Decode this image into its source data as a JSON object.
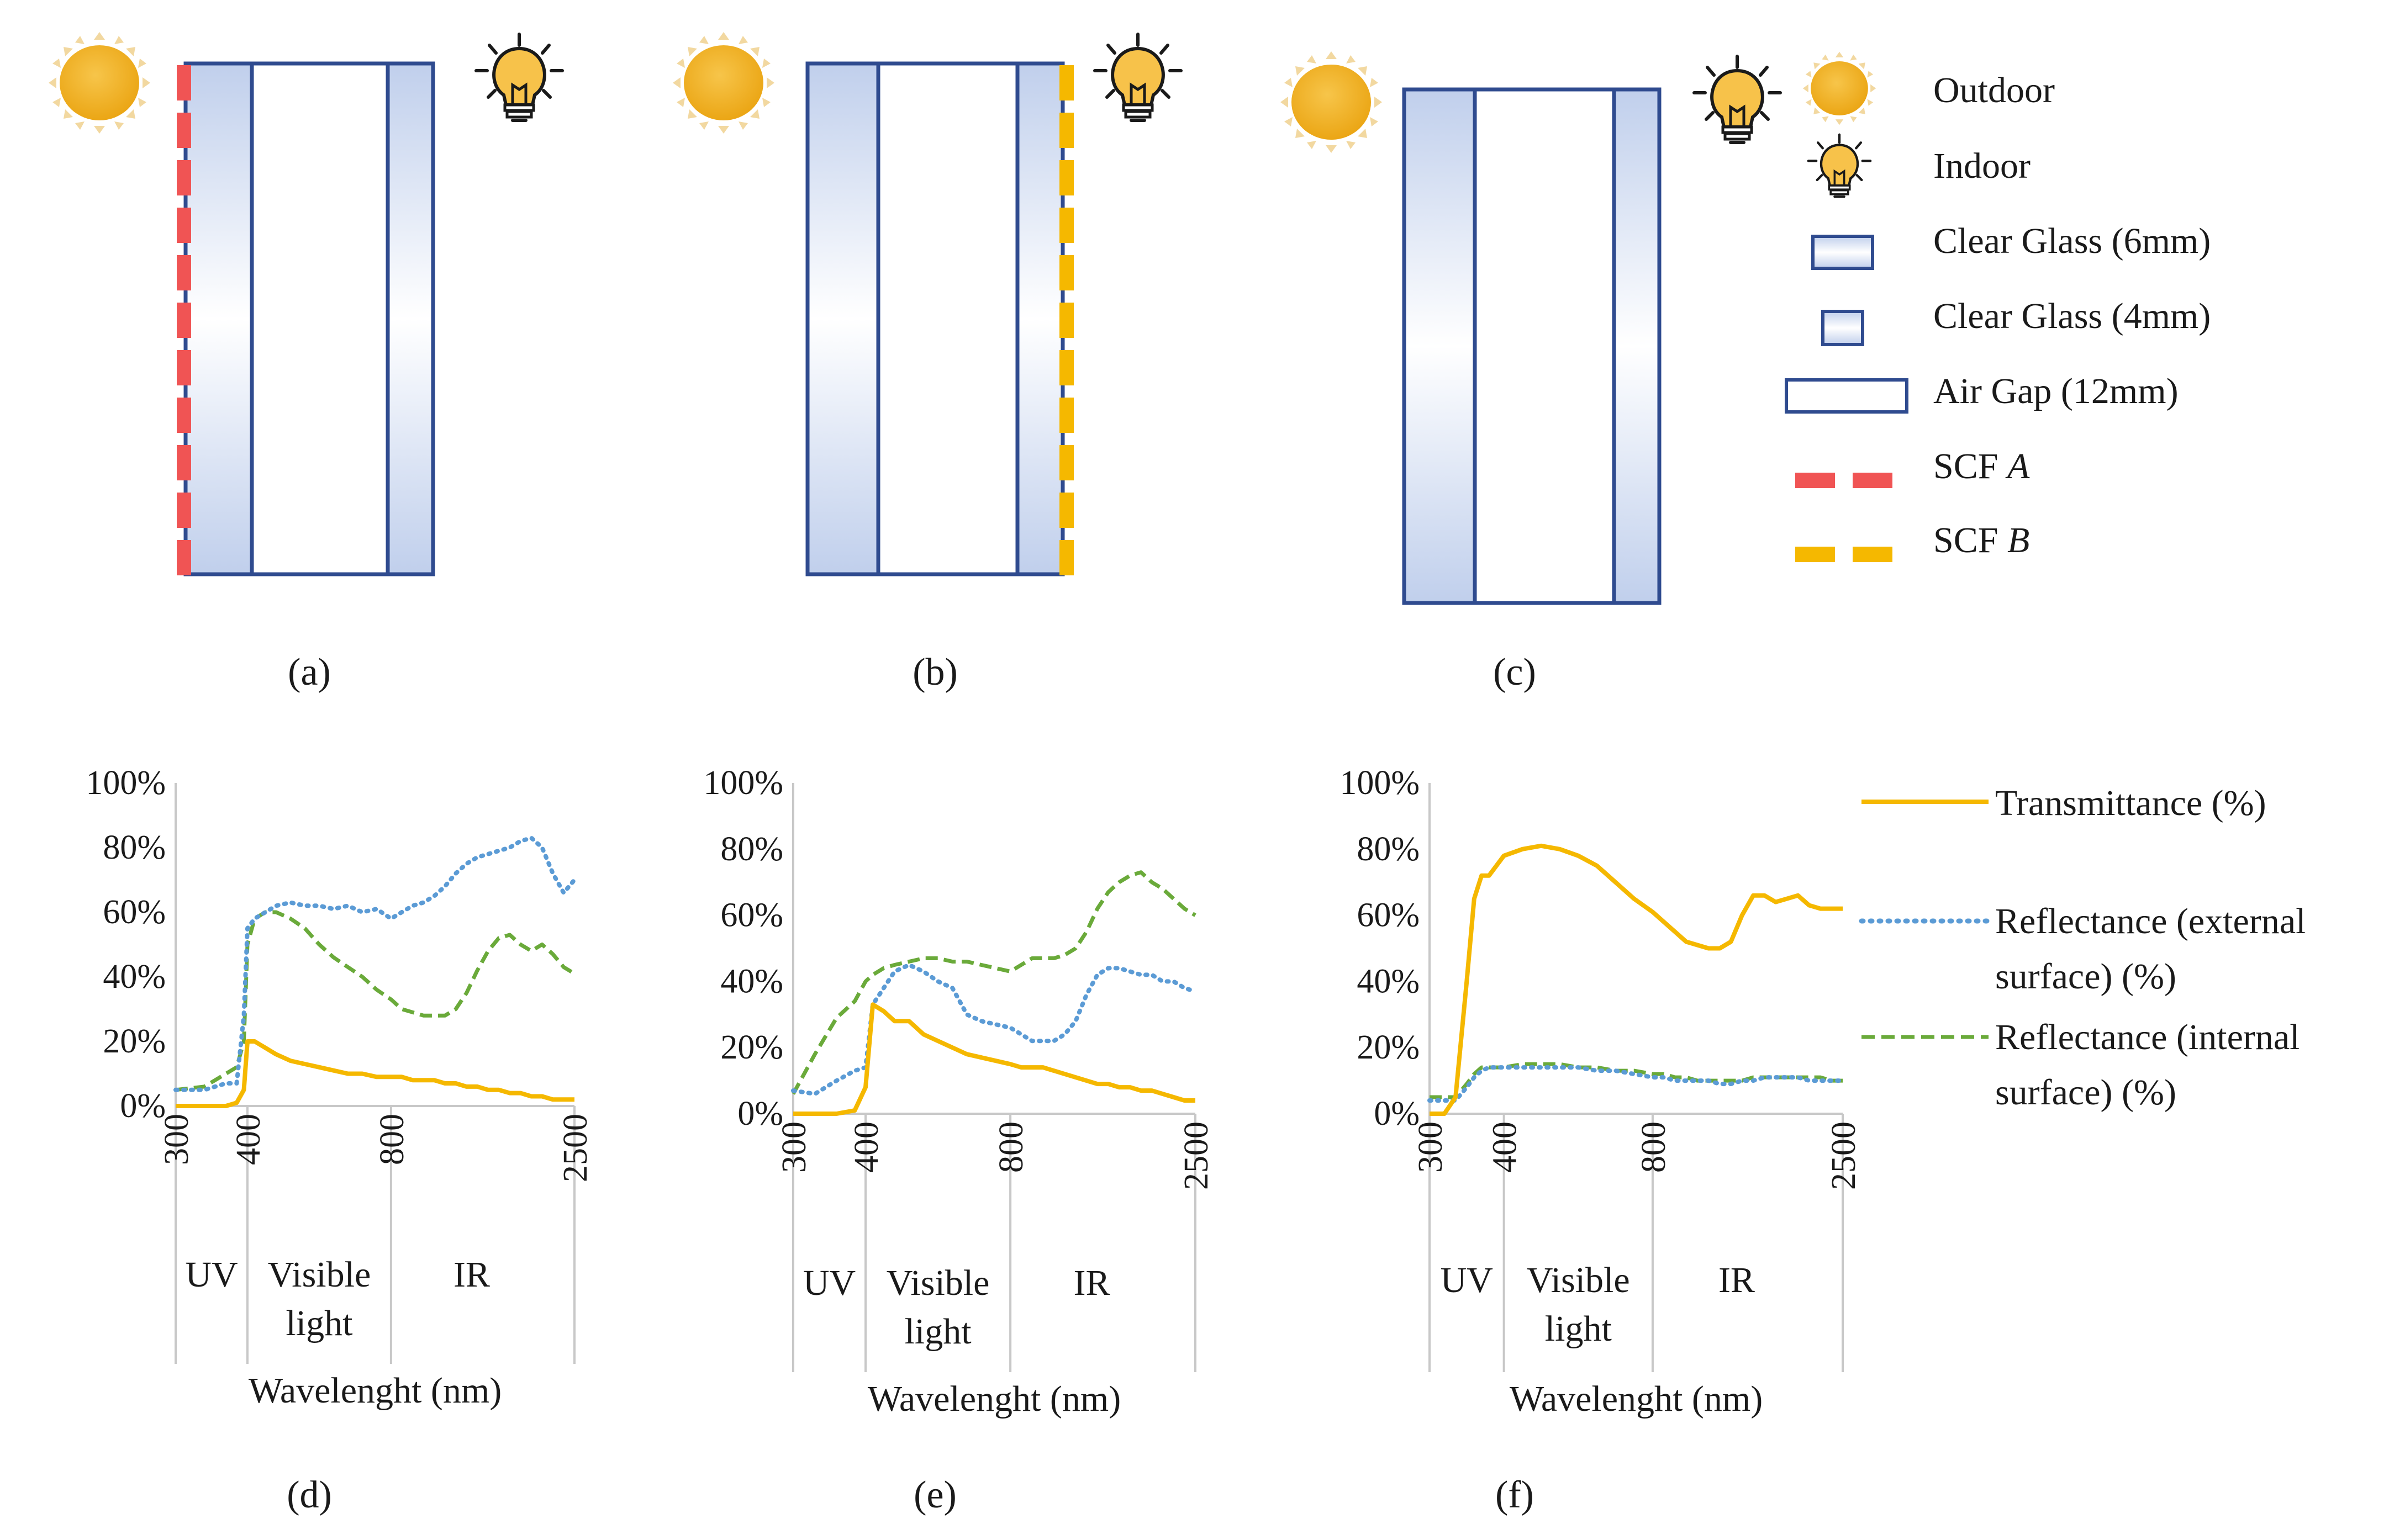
{
  "legend_top": {
    "items": [
      {
        "key": "outdoor",
        "label": "Outdoor"
      },
      {
        "key": "indoor",
        "label": "Indoor"
      },
      {
        "key": "glass6",
        "label": "Clear Glass (6mm)"
      },
      {
        "key": "glass4",
        "label": "Clear Glass (4mm)"
      },
      {
        "key": "airgap",
        "label": "Air Gap (12mm)"
      },
      {
        "key": "scfa",
        "label": "SCF",
        "italic": "A"
      },
      {
        "key": "scfb",
        "label": "SCF",
        "italic": "B"
      }
    ]
  },
  "colors": {
    "scf_a": "#f05454",
    "scf_b": "#f5b800",
    "glass_border": "#2f4b8f",
    "glass_fill": "#c5d3ee",
    "transmittance": "#f5b800",
    "reflectance_external": "#5b9bd5",
    "reflectance_internal": "#6aaa3a",
    "axis_grid": "#c8c8c8"
  },
  "captions": {
    "a": "(a)",
    "b": "(b)",
    "c": "(c)",
    "d": "(d)",
    "e": "(e)",
    "f": "(f)"
  },
  "legend_bottom": {
    "transmittance": "Transmittance (%)",
    "ref_ext_line1": "Reflectance (external",
    "ref_ext_line2": "surface) (%)",
    "ref_int_line1": "Reflectance (internal",
    "ref_int_line2": "surface) (%)"
  },
  "chart_data": [
    {
      "type": "line",
      "panel": "d",
      "xlabel": "Wavelenght (nm)",
      "x_ticks": [
        "300",
        "400",
        "800",
        "2500"
      ],
      "y_ticks": [
        "0%",
        "20%",
        "40%",
        "60%",
        "80%",
        "100%"
      ],
      "ylim": [
        0,
        100
      ],
      "regions": [
        "UV",
        "Visible light",
        "IR"
      ],
      "region_x": [
        300,
        400,
        800,
        2500
      ],
      "x": [
        300,
        340,
        370,
        385,
        395,
        400,
        420,
        450,
        480,
        520,
        560,
        600,
        640,
        680,
        720,
        760,
        800,
        900,
        1000,
        1100,
        1200,
        1300,
        1400,
        1500,
        1600,
        1700,
        1800,
        1900,
        2000,
        2100,
        2200,
        2300,
        2400,
        2500
      ],
      "series": [
        {
          "name": "Transmittance (%)",
          "values": [
            0,
            0,
            0,
            1,
            5,
            20,
            20,
            18,
            16,
            14,
            13,
            12,
            11,
            10,
            10,
            9,
            9,
            9,
            8,
            8,
            8,
            7,
            7,
            6,
            6,
            5,
            5,
            4,
            4,
            3,
            3,
            2,
            2,
            2
          ]
        },
        {
          "name": "Reflectance (external surface) (%)",
          "values": [
            5,
            5,
            7,
            7,
            28,
            55,
            58,
            60,
            62,
            63,
            62,
            62,
            61,
            62,
            60,
            61,
            58,
            60,
            62,
            63,
            65,
            68,
            72,
            75,
            77,
            78,
            79,
            80,
            82,
            83,
            80,
            72,
            66,
            70
          ]
        },
        {
          "name": "Reflectance (internal surface) (%)",
          "values": [
            5,
            6,
            10,
            12,
            20,
            50,
            58,
            60,
            60,
            58,
            55,
            50,
            46,
            43,
            40,
            36,
            33,
            30,
            29,
            28,
            28,
            28,
            30,
            35,
            42,
            48,
            52,
            53,
            50,
            48,
            50,
            47,
            43,
            41
          ]
        }
      ]
    },
    {
      "type": "line",
      "panel": "e",
      "xlabel": "Wavelenght (nm)",
      "x_ticks": [
        "300",
        "400",
        "800",
        "2500"
      ],
      "y_ticks": [
        "0%",
        "20%",
        "40%",
        "60%",
        "80%",
        "100%"
      ],
      "ylim": [
        0,
        100
      ],
      "regions": [
        "UV",
        "Visible light",
        "IR"
      ],
      "region_x": [
        300,
        400,
        800,
        2500
      ],
      "x": [
        300,
        330,
        360,
        385,
        400,
        420,
        450,
        480,
        520,
        560,
        600,
        640,
        680,
        720,
        760,
        800,
        900,
        1000,
        1100,
        1200,
        1300,
        1400,
        1500,
        1600,
        1700,
        1800,
        1900,
        2000,
        2100,
        2200,
        2300,
        2400,
        2500
      ],
      "series": [
        {
          "name": "Transmittance (%)",
          "values": [
            0,
            0,
            0,
            1,
            8,
            33,
            31,
            28,
            28,
            24,
            22,
            20,
            18,
            17,
            16,
            15,
            14,
            14,
            14,
            13,
            12,
            11,
            10,
            9,
            9,
            8,
            8,
            7,
            7,
            6,
            5,
            4,
            4
          ]
        },
        {
          "name": "Reflectance (external surface) (%)",
          "values": [
            7,
            6,
            10,
            13,
            14,
            33,
            38,
            43,
            45,
            43,
            40,
            38,
            30,
            28,
            27,
            26,
            24,
            22,
            22,
            22,
            24,
            28,
            36,
            42,
            44,
            44,
            43,
            42,
            42,
            40,
            40,
            38,
            37
          ]
        },
        {
          "name": "Reflectance (internal surface) (%)",
          "values": [
            6,
            18,
            29,
            34,
            40,
            42,
            44,
            45,
            46,
            47,
            47,
            46,
            46,
            45,
            44,
            43,
            45,
            47,
            47,
            47,
            48,
            50,
            55,
            62,
            67,
            70,
            72,
            73,
            70,
            68,
            65,
            62,
            60
          ]
        }
      ]
    },
    {
      "type": "line",
      "panel": "f",
      "xlabel": "Wavelenght (nm)",
      "x_ticks": [
        "300",
        "400",
        "800",
        "2500"
      ],
      "y_ticks": [
        "0%",
        "20%",
        "40%",
        "60%",
        "80%",
        "100%"
      ],
      "ylim": [
        0,
        100
      ],
      "regions": [
        "UV",
        "Visible light",
        "IR"
      ],
      "region_x": [
        300,
        400,
        800,
        2500
      ],
      "x": [
        300,
        320,
        335,
        350,
        360,
        370,
        380,
        400,
        450,
        500,
        550,
        600,
        650,
        700,
        750,
        800,
        900,
        1000,
        1100,
        1200,
        1300,
        1400,
        1500,
        1600,
        1700,
        1800,
        1900,
        2000,
        2100,
        2200,
        2300,
        2400,
        2500
      ],
      "series": [
        {
          "name": "Transmittance (%)",
          "values": [
            0,
            0,
            5,
            40,
            65,
            72,
            72,
            78,
            80,
            81,
            80,
            78,
            75,
            70,
            65,
            61,
            58,
            55,
            52,
            51,
            50,
            50,
            52,
            60,
            66,
            66,
            64,
            65,
            66,
            63,
            62,
            62,
            62
          ]
        },
        {
          "name": "Reflectance (external surface) (%)",
          "values": [
            4,
            4,
            4,
            8,
            11,
            13,
            14,
            14,
            14,
            14,
            14,
            14,
            13,
            13,
            12,
            11,
            11,
            10,
            10,
            10,
            10,
            9,
            9,
            10,
            10,
            11,
            11,
            11,
            11,
            10,
            10,
            10,
            10
          ]
        },
        {
          "name": "Reflectance (internal surface) (%)",
          "values": [
            5,
            5,
            5,
            9,
            12,
            14,
            14,
            14,
            15,
            15,
            15,
            14,
            14,
            13,
            13,
            12,
            12,
            11,
            11,
            10,
            10,
            10,
            10,
            10,
            11,
            11,
            11,
            11,
            11,
            11,
            11,
            10,
            10
          ]
        }
      ]
    }
  ]
}
